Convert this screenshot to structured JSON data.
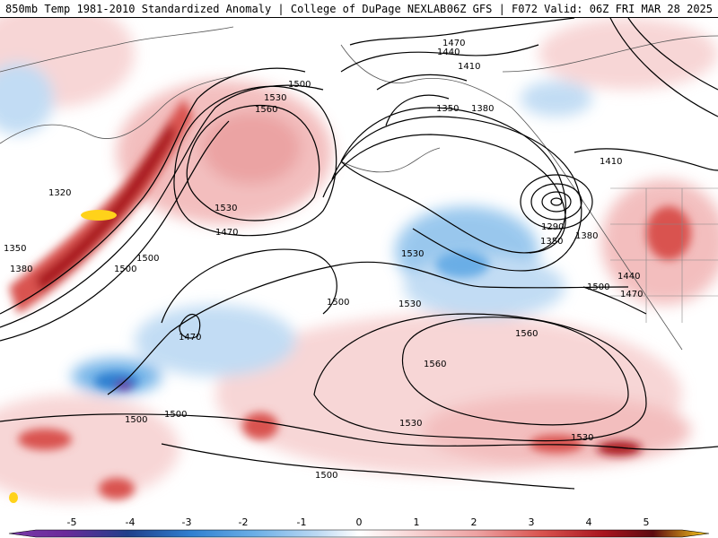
{
  "header": {
    "title": "850mb Temp 1981-2010 Standardized Anomaly | College of DuPage NEXLAB",
    "run_info": "06Z GFS | F072 Valid: 06Z FRI MAR 28 2025"
  },
  "map": {
    "contour_labels": [
      "1470",
      "1440",
      "1410",
      "1380",
      "1350",
      "1290",
      "1350",
      "1380",
      "1440",
      "1410",
      "1470",
      "1500",
      "1530",
      "1560",
      "1530",
      "1500",
      "1470",
      "1500",
      "1470",
      "1320",
      "1350",
      "1380",
      "1500",
      "1530",
      "1560",
      "1560",
      "1530",
      "1500",
      "1500",
      "1500",
      "1530",
      "1500",
      "1530"
    ]
  },
  "colorbar": {
    "labels": [
      "-5",
      "-4",
      "-3",
      "-2",
      "-1",
      "0",
      "1",
      "2",
      "3",
      "4",
      "5"
    ],
    "colors": [
      "#6a2a9a",
      "#1f3f8a",
      "#2f7fd0",
      "#6aaee6",
      "#bcd9f3",
      "#ffffff",
      "#f7d2d2",
      "#eda0a0",
      "#d9534f",
      "#a8141e",
      "#ffd21a"
    ]
  }
}
